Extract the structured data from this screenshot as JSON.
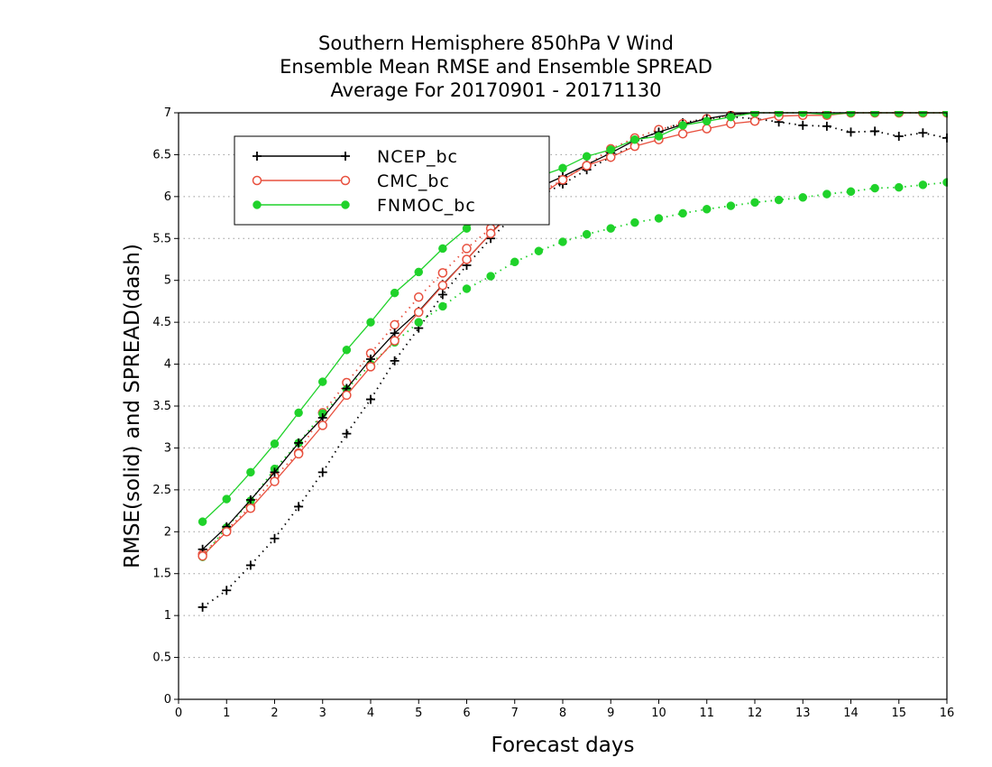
{
  "chart_data": {
    "type": "line",
    "title_lines": [
      "Southern Hemisphere 850hPa V Wind",
      "Ensemble Mean RMSE and Ensemble SPREAD",
      "Average For 20170901 - 20171130"
    ],
    "xlabel": "Forecast days",
    "ylabel": "RMSE(solid) and SPREAD(dash)",
    "xlim": [
      0,
      16
    ],
    "ylim": [
      0,
      7
    ],
    "x_ticks": [
      "0",
      "1",
      "2",
      "3",
      "4",
      "5",
      "6",
      "7",
      "8",
      "9",
      "10",
      "11",
      "12",
      "13",
      "14",
      "15",
      "16"
    ],
    "y_ticks": [
      "0",
      "0.5",
      "1",
      "1.5",
      "2",
      "2.5",
      "3",
      "3.5",
      "4",
      "4.5",
      "5",
      "5.5",
      "6",
      "6.5",
      "7"
    ],
    "grid": "horizontal dotted",
    "legend_position": "top-left",
    "x": [
      0.5,
      1,
      1.5,
      2,
      2.5,
      3,
      3.5,
      4,
      4.5,
      5,
      5.5,
      6,
      6.5,
      7,
      7.5,
      8,
      8.5,
      9,
      9.5,
      10,
      10.5,
      11,
      11.5,
      12,
      12.5,
      13,
      13.5,
      14,
      14.5,
      15,
      15.5,
      16
    ],
    "series": [
      {
        "name": "NCEP_bc",
        "metric": "RMSE",
        "line": "solid",
        "marker": "plus",
        "color": "#000000",
        "values": [
          1.79,
          2.06,
          2.38,
          2.71,
          3.06,
          3.36,
          3.71,
          4.06,
          4.37,
          4.63,
          4.95,
          5.25,
          5.56,
          5.86,
          6.11,
          6.24,
          6.38,
          6.52,
          6.67,
          6.77,
          6.86,
          6.93,
          6.98,
          7.0,
          7.0,
          7.0,
          7.0,
          7.0,
          7.0,
          7.0,
          7.0,
          7.0
        ]
      },
      {
        "name": "CMC_bc",
        "metric": "RMSE",
        "line": "solid",
        "marker": "open-circle",
        "color": "#e8503e",
        "values": [
          1.71,
          2.0,
          2.28,
          2.6,
          2.93,
          3.27,
          3.63,
          3.97,
          4.28,
          4.62,
          4.94,
          5.25,
          5.56,
          5.83,
          6.0,
          6.2,
          6.37,
          6.47,
          6.6,
          6.68,
          6.75,
          6.81,
          6.87,
          6.9,
          6.96,
          6.97,
          6.97,
          7.0,
          7.0,
          7.0,
          7.0,
          7.0
        ]
      },
      {
        "name": "FNMOC_bc",
        "metric": "RMSE",
        "line": "solid",
        "marker": "filled-circle",
        "color": "#1fd22a",
        "values": [
          2.12,
          2.39,
          2.71,
          3.05,
          3.42,
          3.79,
          4.17,
          4.5,
          4.85,
          5.1,
          5.38,
          5.62,
          5.88,
          6.08,
          6.24,
          6.34,
          6.48,
          6.56,
          6.68,
          6.72,
          6.85,
          6.9,
          6.95,
          7.0,
          7.0,
          7.0,
          6.98,
          7.0,
          7.0,
          7.0,
          7.0,
          7.0
        ]
      },
      {
        "name": "NCEP_bc",
        "metric": "SPREAD",
        "line": "dash",
        "marker": "plus",
        "color": "#000000",
        "values": [
          1.1,
          1.3,
          1.6,
          1.92,
          2.3,
          2.71,
          3.17,
          3.58,
          4.04,
          4.43,
          4.83,
          5.18,
          5.5,
          5.78,
          6.0,
          6.15,
          6.32,
          6.47,
          6.62,
          6.79,
          6.88,
          6.93,
          6.95,
          6.93,
          6.89,
          6.85,
          6.84,
          6.77,
          6.78,
          6.72,
          6.76,
          6.7
        ]
      },
      {
        "name": "CMC_bc",
        "metric": "SPREAD",
        "line": "dash",
        "marker": "open-circle",
        "color": "#e8503e",
        "values": [
          1.73,
          2.02,
          2.3,
          2.66,
          2.94,
          3.42,
          3.78,
          4.13,
          4.47,
          4.8,
          5.09,
          5.38,
          5.62,
          5.86,
          6.04,
          6.2,
          6.37,
          6.57,
          6.7,
          6.8,
          6.87,
          6.93,
          6.97,
          7.0,
          7.0,
          7.0,
          7.0,
          7.0,
          7.0,
          7.0,
          7.0,
          7.0
        ]
      },
      {
        "name": "FNMOC_bc",
        "metric": "SPREAD",
        "line": "dash",
        "marker": "filled-circle",
        "color": "#1fd22a",
        "values": [
          1.7,
          2.05,
          2.37,
          2.75,
          3.06,
          3.41,
          3.7,
          4.0,
          4.26,
          4.5,
          4.69,
          4.9,
          5.05,
          5.22,
          5.35,
          5.46,
          5.55,
          5.62,
          5.69,
          5.74,
          5.8,
          5.85,
          5.89,
          5.93,
          5.96,
          5.99,
          6.03,
          6.06,
          6.1,
          6.11,
          6.14,
          6.17
        ]
      }
    ]
  }
}
